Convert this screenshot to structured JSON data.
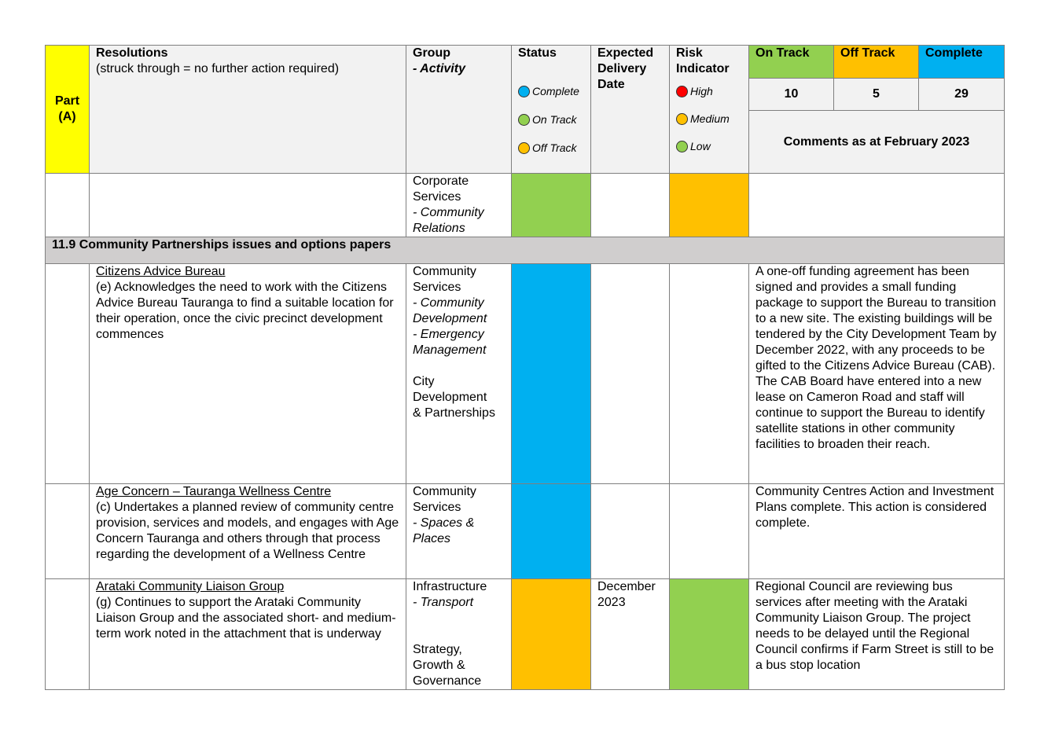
{
  "colors": {
    "part": "#ffff00",
    "on_track": "#92d050",
    "off_track": "#ffc000",
    "complete": "#00b0f0",
    "high": "#ff0000",
    "header_bg": "#f2f2f2",
    "section_bg": "#d0cece"
  },
  "header": {
    "part": "Part\n(A)",
    "resolutions_title": "Resolutions",
    "resolutions_note": "(struck through = no further action required)",
    "group_title": "Group",
    "group_sub": "- Activity",
    "status_title": "Status",
    "status_legend": [
      "Complete",
      "On Track",
      "Off Track"
    ],
    "expected_delivery": "Expected\nDelivery\nDate",
    "risk_title": "Risk\nIndicator",
    "risk_legend": [
      "High",
      "Medium",
      "Low"
    ],
    "on_track_label": "On Track",
    "off_track_label": "Off Track",
    "complete_label": "Complete",
    "on_track_count": "10",
    "off_track_count": "5",
    "complete_count": "29",
    "comments_title": "Comments as at February 2023"
  },
  "rows": {
    "r0": {
      "group": "Corporate\nServices",
      "activity": "- Community\nRelations"
    },
    "section": "11.9 Community Partnerships issues and options papers",
    "r1": {
      "title": "Citizens Advice Bureau",
      "text": "(e) Acknowledges the need to work with the Citizens Advice Bureau Tauranga to find a suitable location for their operation, once the civic precinct development commences",
      "group1": "Community\nServices",
      "activity1": "- Community\nDevelopment\n- Emergency\nManagement",
      "group2": "City\nDevelopment\n& Partnerships",
      "comment": "A one-off funding agreement has been signed and provides a small funding package to support the Bureau to transition to a new site. The existing buildings will be tendered by the City Development Team by December 2022, with any proceeds to be gifted to the Citizens Advice Bureau (CAB). The CAB Board have entered into a new lease on Cameron Road and staff will continue to support the Bureau to identify satellite stations in other community facilities to broaden their reach."
    },
    "r2": {
      "title": "Age Concern – Tauranga Wellness Centre",
      "text": "(c)  Undertakes a planned review of community centre provision, services and models, and engages with Age Concern Tauranga and others through that process regarding the development of a Wellness Centre",
      "group": "Community\nServices",
      "activity": "- Spaces &\nPlaces",
      "comment": "Community Centres Action and Investment Plans complete. This action is considered complete."
    },
    "r3": {
      "title": "Arataki Community Liaison Group",
      "text": "(g) Continues to support the Arataki Community Liaison Group and the associated short- and medium-term work noted in the attachment that is underway",
      "group1": "Infrastructure",
      "activity1": "- Transport",
      "group2": "Strategy,\nGrowth &\nGovernance",
      "delivery": "December\n2023",
      "comment": "Regional Council are reviewing bus services after meeting with the Arataki Community Liaison Group. The project needs to be delayed until the Regional Council confirms if Farm Street is still to be a bus stop location"
    }
  }
}
